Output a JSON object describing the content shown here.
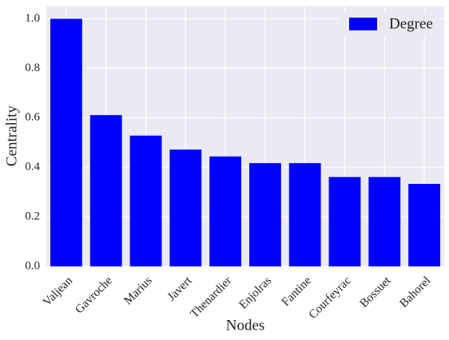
{
  "chart_data": {
    "type": "bar",
    "x_label": "Nodes",
    "y_label": "Centrality",
    "categories": [
      "Valjean",
      "Gavroche",
      "Marius",
      "Javert",
      "Thenardier",
      "Enjolras",
      "Fantine",
      "Courfeyrac",
      "Bossuet",
      "Bahorel"
    ],
    "series": [
      {
        "name": "Degree",
        "color": "#0000ff",
        "values": [
          1.0,
          0.611,
          0.528,
          0.472,
          0.444,
          0.417,
          0.417,
          0.361,
          0.361,
          0.333
        ]
      }
    ],
    "ylim": [
      0,
      1.05
    ],
    "yticks": [
      {
        "value": 0,
        "label": "0.0"
      },
      0.2,
      0.4,
      0.6,
      0.8,
      {
        "value": 1,
        "label": "1.0"
      }
    ],
    "grid": true,
    "legend": "upper right"
  }
}
